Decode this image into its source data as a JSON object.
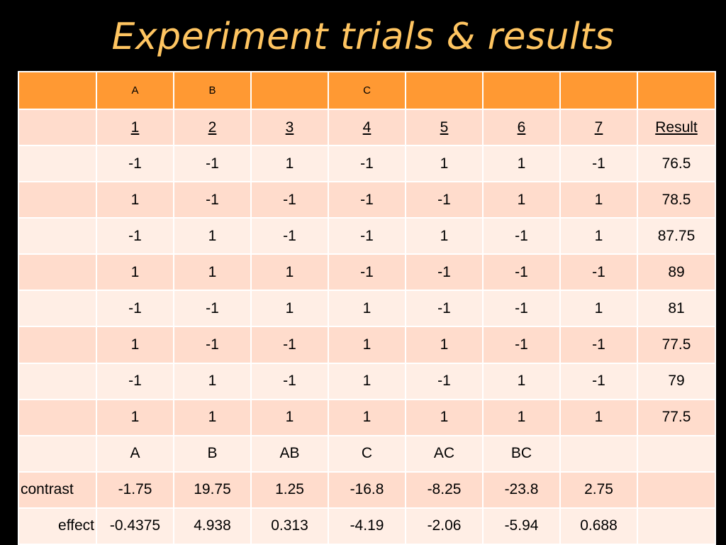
{
  "title": "Experiment trials & results",
  "colors": {
    "header": "#FF9933",
    "row_alt": "#FFDCCC",
    "row_light": "#FFEEE5",
    "title": "#FFC561",
    "background": "#000000"
  },
  "header_row": [
    "",
    "A",
    "B",
    "",
    "C",
    "",
    "",
    "",
    ""
  ],
  "column_numbers": [
    "1",
    "2",
    "3",
    "4",
    "5",
    "6",
    "7"
  ],
  "result_label": "Result",
  "trials": [
    {
      "values": [
        "-1",
        "-1",
        "1",
        "-1",
        "1",
        "1",
        "-1"
      ],
      "result": "76.5"
    },
    {
      "values": [
        "1",
        "-1",
        "-1",
        "-1",
        "-1",
        "1",
        "1"
      ],
      "result": "78.5"
    },
    {
      "values": [
        "-1",
        "1",
        "-1",
        "-1",
        "1",
        "-1",
        "1"
      ],
      "result": "87.75"
    },
    {
      "values": [
        "1",
        "1",
        "1",
        "-1",
        "-1",
        "-1",
        "-1"
      ],
      "result": "89"
    },
    {
      "values": [
        "-1",
        "-1",
        "1",
        "1",
        "-1",
        "-1",
        "1"
      ],
      "result": "81"
    },
    {
      "values": [
        "1",
        "-1",
        "-1",
        "1",
        "1",
        "-1",
        "-1"
      ],
      "result": "77.5"
    },
    {
      "values": [
        "-1",
        "1",
        "-1",
        "1",
        "-1",
        "1",
        "-1"
      ],
      "result": "79"
    },
    {
      "values": [
        "1",
        "1",
        "1",
        "1",
        "1",
        "1",
        "1"
      ],
      "result": "77.5"
    }
  ],
  "factor_row": [
    "A",
    "B",
    "AB",
    "C",
    "AC",
    "BC",
    ""
  ],
  "contrast_row": {
    "label": "contrast",
    "values": [
      "-1.75",
      "19.75",
      "1.25",
      "-16.8",
      "-8.25",
      "-23.8",
      "2.75"
    ]
  },
  "effect_row": {
    "label": "effect",
    "values": [
      "-0.4375",
      "4.938",
      "0.313",
      "-4.19",
      "-2.06",
      "-5.94",
      "0.688"
    ]
  }
}
